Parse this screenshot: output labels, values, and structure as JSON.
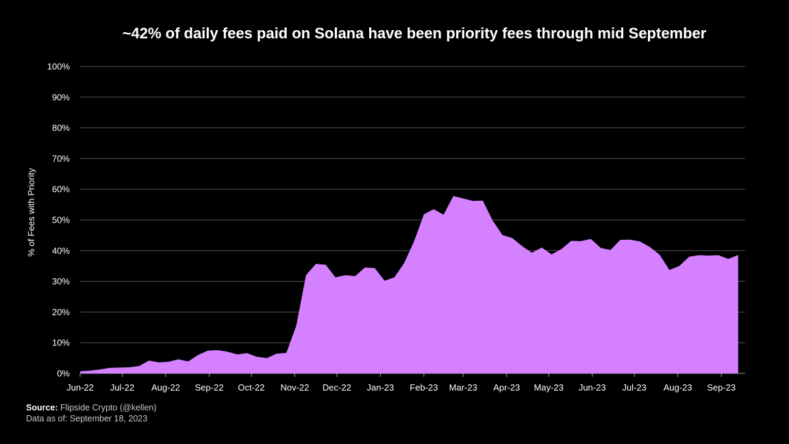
{
  "chart_data": {
    "type": "area",
    "title": "~42% of daily fees paid on Solana have been priority fees through mid September",
    "xlabel": "",
    "ylabel": "% of Fees with Priority",
    "ylim": [
      0,
      100
    ],
    "y_ticks": [
      "0%",
      "10%",
      "20%",
      "30%",
      "40%",
      "50%",
      "60%",
      "70%",
      "80%",
      "90%",
      "100%"
    ],
    "x_tick_labels": [
      "Jun-22",
      "Jul-22",
      "Aug-22",
      "Sep-22",
      "Oct-22",
      "Nov-22",
      "Dec-22",
      "Jan-23",
      "Feb-23",
      "Mar-23",
      "Apr-23",
      "May-23",
      "Jun-23",
      "Jul-23",
      "Aug-23",
      "Sep-23"
    ],
    "grid": true,
    "legend": "none",
    "color": "#d580ff",
    "series": [
      {
        "x": [
          "2022-06-01",
          "2022-06-08",
          "2022-06-15",
          "2022-06-22",
          "2022-06-29",
          "2022-07-06",
          "2022-07-13",
          "2022-07-20",
          "2022-07-27",
          "2022-08-03",
          "2022-08-10",
          "2022-08-17",
          "2022-08-24",
          "2022-08-31",
          "2022-09-07",
          "2022-09-14",
          "2022-09-21",
          "2022-09-28",
          "2022-10-05",
          "2022-10-12",
          "2022-10-19",
          "2022-10-26",
          "2022-11-02",
          "2022-11-09",
          "2022-11-16",
          "2022-11-23",
          "2022-11-30",
          "2022-12-07",
          "2022-12-14",
          "2022-12-21",
          "2022-12-28",
          "2023-01-04",
          "2023-01-11",
          "2023-01-18",
          "2023-01-25",
          "2023-02-01",
          "2023-02-08",
          "2023-02-15",
          "2023-02-22",
          "2023-03-01",
          "2023-03-08",
          "2023-03-15",
          "2023-03-22",
          "2023-03-29",
          "2023-04-05",
          "2023-04-12",
          "2023-04-19",
          "2023-04-26",
          "2023-05-03",
          "2023-05-10",
          "2023-05-17",
          "2023-05-24",
          "2023-05-31",
          "2023-06-07",
          "2023-06-14",
          "2023-06-21",
          "2023-06-28",
          "2023-07-05",
          "2023-07-12",
          "2023-07-19",
          "2023-07-26",
          "2023-08-02",
          "2023-08-09",
          "2023-08-16",
          "2023-08-23",
          "2023-08-30",
          "2023-09-06",
          "2023-09-13"
        ],
        "values": [
          0.7,
          0.9,
          1.3,
          1.8,
          1.9,
          2.0,
          2.4,
          4.2,
          3.6,
          3.8,
          4.6,
          3.9,
          6.0,
          7.4,
          7.6,
          7.1,
          6.2,
          6.6,
          5.4,
          5.0,
          6.4,
          6.7,
          15.5,
          32.0,
          35.7,
          35.4,
          31.3,
          32.0,
          31.7,
          34.5,
          34.3,
          30.2,
          31.3,
          36.0,
          43.0,
          51.8,
          53.5,
          51.7,
          57.8,
          57.0,
          56.2,
          56.3,
          49.8,
          45.1,
          44.1,
          41.5,
          39.3,
          41.0,
          38.8,
          40.5,
          43.2,
          43.1,
          43.8,
          40.9,
          40.2,
          43.5,
          43.6,
          43.0,
          41.2,
          38.7,
          33.7,
          35.0,
          38.0,
          38.5,
          38.4,
          38.5,
          37.3,
          38.6
        ]
      }
    ]
  },
  "source_label": "Source:",
  "source_text": " Flipside Crypto (@kellen)",
  "data_as_of": "Data as of: September 18, 2023"
}
